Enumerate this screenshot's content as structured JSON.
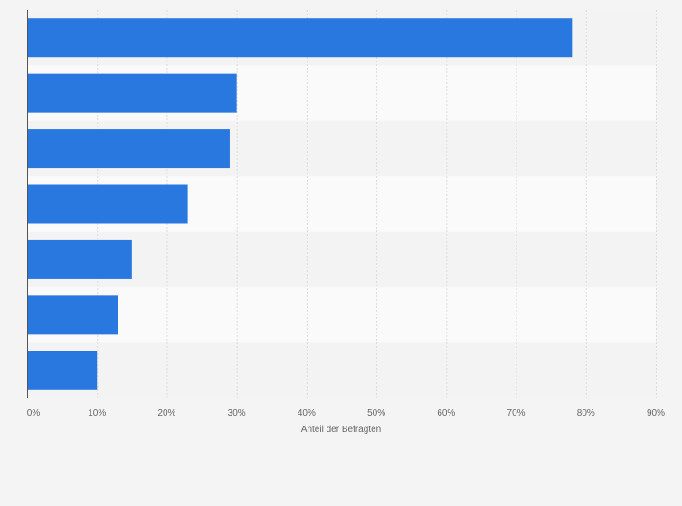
{
  "chart_data": {
    "type": "bar",
    "orientation": "horizontal",
    "categories": [
      "",
      "",
      "",
      "",
      "",
      "",
      ""
    ],
    "values": [
      78,
      30,
      29,
      23,
      15,
      13,
      10
    ],
    "xlabel": "Anteil der Befragten",
    "ylabel": "",
    "xlim": [
      0,
      90
    ],
    "x_ticks": [
      "0%",
      "10%",
      "20%",
      "30%",
      "40%",
      "50%",
      "60%",
      "70%",
      "80%",
      "90%"
    ],
    "grid": true,
    "legend": "none",
    "colors": {
      "bar": "#2878e0",
      "band_light": "#fafafa",
      "band_dark": "#f3f3f3",
      "grid": "#dcdcdc",
      "axis": "#555555",
      "text": "#666666",
      "background": "#f4f4f4"
    }
  }
}
